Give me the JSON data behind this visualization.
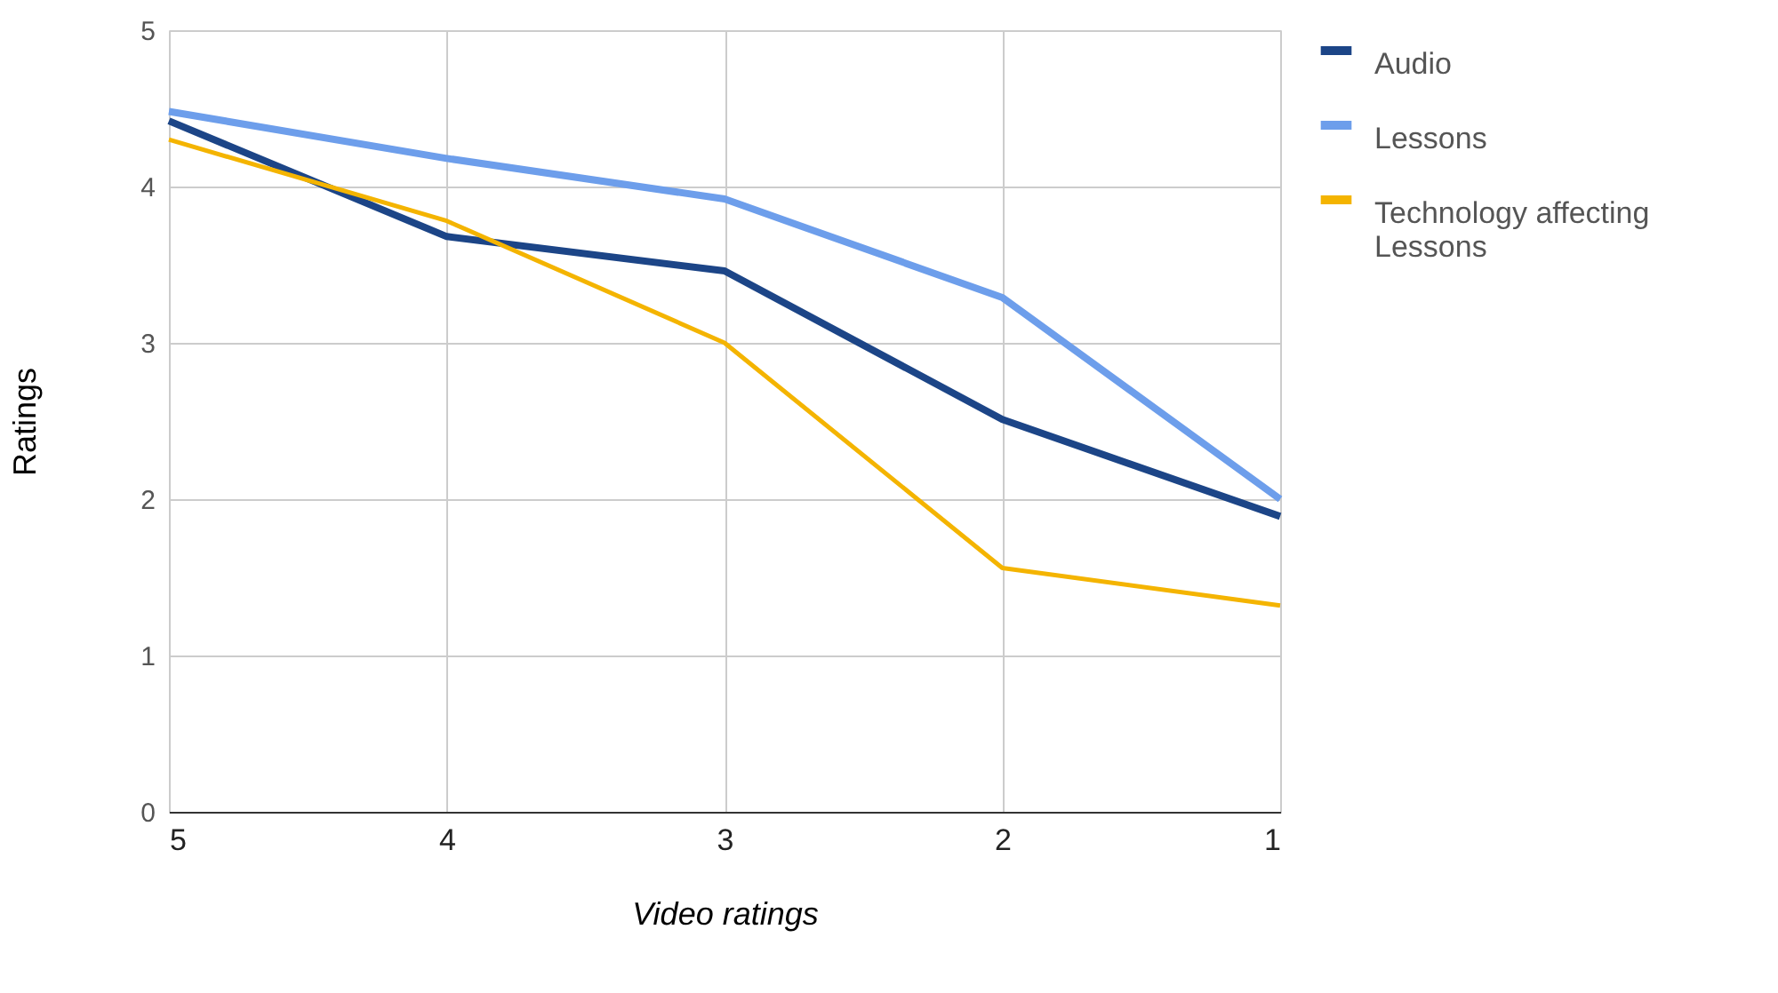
{
  "chart_data": {
    "type": "line",
    "xlabel": "Video ratings",
    "ylabel": "Ratings",
    "categories": [
      "5",
      "4",
      "3",
      "2",
      "1"
    ],
    "series": [
      {
        "name": "Audio",
        "color": "#1c4587",
        "values": [
          4.42,
          3.68,
          3.46,
          2.51,
          1.89
        ]
      },
      {
        "name": "Lessons",
        "color": "#6d9eeb",
        "values": [
          4.48,
          4.18,
          3.92,
          3.29,
          2.0
        ]
      },
      {
        "name": "Technology affecting Lessons",
        "color": "#f4b400",
        "values": [
          4.3,
          3.78,
          3.0,
          1.56,
          1.32
        ]
      }
    ],
    "ylim": [
      0,
      5
    ],
    "yticks": [
      0,
      1,
      2,
      3,
      4,
      5
    ],
    "grid": true,
    "legend": "top right",
    "line_style": "solid",
    "marker": "none"
  }
}
